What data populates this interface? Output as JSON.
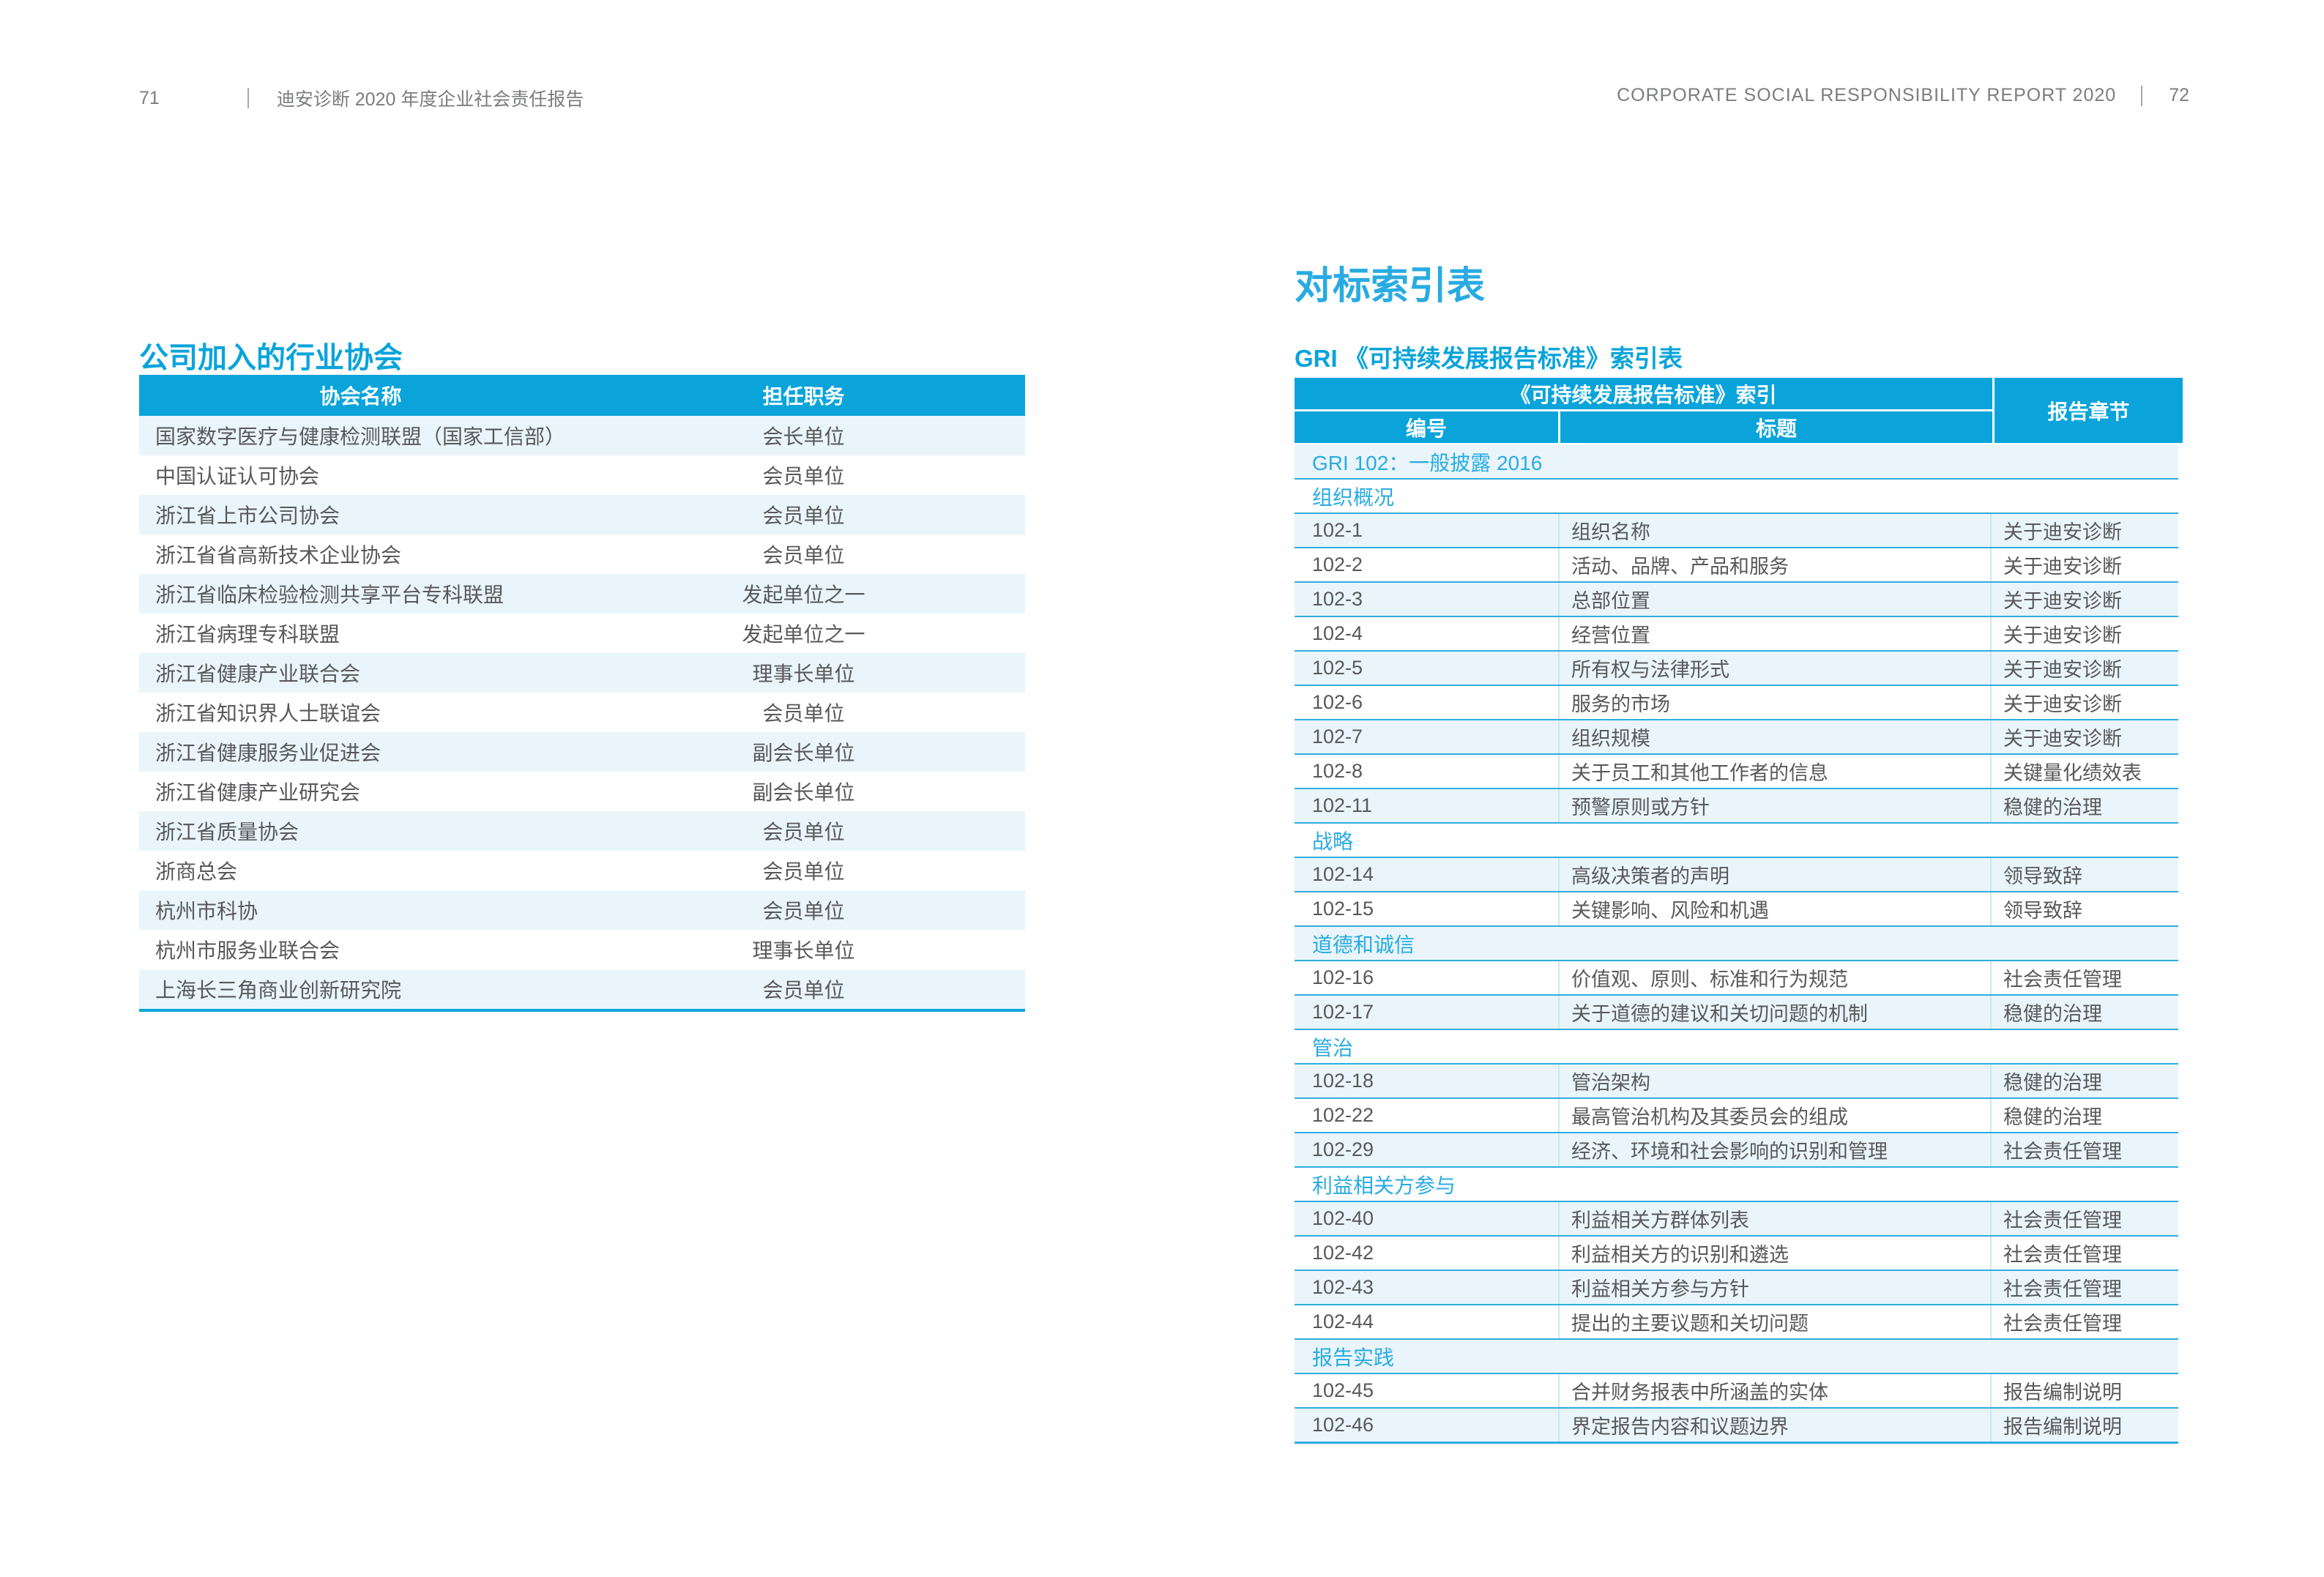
{
  "colors": {
    "accent": "#0aa4da",
    "section_text": "#29abe2",
    "row_alt": "#e9f5fb",
    "row_separator": "#2fadde",
    "body_text": "#58585a",
    "header_text": "#7b7c7f"
  },
  "page_left": {
    "header": {
      "page_number": "71",
      "report_title": "迪安诊断 2020 年度企业社会责任报告"
    },
    "section_title": "公司加入的行业协会",
    "table": {
      "columns": [
        "协会名称",
        "担任职务"
      ],
      "rows": [
        [
          "国家数字医疗与健康检测联盟（国家工信部）",
          "会长单位"
        ],
        [
          "中国认证认可协会",
          "会员单位"
        ],
        [
          "浙江省上市公司协会",
          "会员单位"
        ],
        [
          "浙江省省高新技术企业协会",
          "会员单位"
        ],
        [
          "浙江省临床检验检测共享平台专科联盟",
          "发起单位之一"
        ],
        [
          "浙江省病理专科联盟",
          "发起单位之一"
        ],
        [
          "浙江省健康产业联合会",
          "理事长单位"
        ],
        [
          "浙江省知识界人士联谊会",
          "会员单位"
        ],
        [
          "浙江省健康服务业促进会",
          "副会长单位"
        ],
        [
          "浙江省健康产业研究会",
          "副会长单位"
        ],
        [
          "浙江省质量协会",
          "会员单位"
        ],
        [
          "浙商总会",
          "会员单位"
        ],
        [
          "杭州市科协",
          "会员单位"
        ],
        [
          "杭州市服务业联合会",
          "理事长单位"
        ],
        [
          "上海长三角商业创新研究院",
          "会员单位"
        ]
      ]
    }
  },
  "page_right": {
    "header": {
      "report_title": "CORPORATE SOCIAL RESPONSIBILITY REPORT 2020",
      "page_number": "72"
    },
    "page_title": "对标索引表",
    "section_title": "GRI 《可持续发展报告标准》索引表",
    "table": {
      "header": {
        "group": "《可持续发展报告标准》索引",
        "col_number": "编号",
        "col_title": "标题",
        "col_chapter": "报告章节"
      },
      "rows": [
        {
          "type": "section",
          "label": "GRI 102：一般披露 2016"
        },
        {
          "type": "section",
          "label": "组织概况"
        },
        {
          "type": "data",
          "number": "102-1",
          "title": "组织名称",
          "chapter": "关于迪安诊断"
        },
        {
          "type": "data",
          "number": "102-2",
          "title": "活动、品牌、产品和服务",
          "chapter": "关于迪安诊断"
        },
        {
          "type": "data",
          "number": "102-3",
          "title": "总部位置",
          "chapter": "关于迪安诊断"
        },
        {
          "type": "data",
          "number": "102-4",
          "title": "经营位置",
          "chapter": "关于迪安诊断"
        },
        {
          "type": "data",
          "number": "102-5",
          "title": "所有权与法律形式",
          "chapter": "关于迪安诊断"
        },
        {
          "type": "data",
          "number": "102-6",
          "title": "服务的市场",
          "chapter": "关于迪安诊断"
        },
        {
          "type": "data",
          "number": "102-7",
          "title": "组织规模",
          "chapter": "关于迪安诊断"
        },
        {
          "type": "data",
          "number": "102-8",
          "title": "关于员工和其他工作者的信息",
          "chapter": "关键量化绩效表"
        },
        {
          "type": "data",
          "number": "102-11",
          "title": "预警原则或方针",
          "chapter": "稳健的治理"
        },
        {
          "type": "section",
          "label": "战略"
        },
        {
          "type": "data",
          "number": "102-14",
          "title": "高级决策者的声明",
          "chapter": "领导致辞"
        },
        {
          "type": "data",
          "number": "102-15",
          "title": "关键影响、风险和机遇",
          "chapter": "领导致辞"
        },
        {
          "type": "section",
          "label": "道德和诚信"
        },
        {
          "type": "data",
          "number": "102-16",
          "title": "价值观、原则、标准和行为规范",
          "chapter": "社会责任管理"
        },
        {
          "type": "data",
          "number": "102-17",
          "title": "关于道德的建议和关切问题的机制",
          "chapter": "稳健的治理"
        },
        {
          "type": "section",
          "label": "管治"
        },
        {
          "type": "data",
          "number": "102-18",
          "title": "管治架构",
          "chapter": "稳健的治理"
        },
        {
          "type": "data",
          "number": "102-22",
          "title": "最高管治机构及其委员会的组成",
          "chapter": "稳健的治理"
        },
        {
          "type": "data",
          "number": "102-29",
          "title": "经济、环境和社会影响的识别和管理",
          "chapter": "社会责任管理"
        },
        {
          "type": "section",
          "label": "利益相关方参与"
        },
        {
          "type": "data",
          "number": "102-40",
          "title": "利益相关方群体列表",
          "chapter": "社会责任管理"
        },
        {
          "type": "data",
          "number": "102-42",
          "title": "利益相关方的识别和遴选",
          "chapter": "社会责任管理"
        },
        {
          "type": "data",
          "number": "102-43",
          "title": "利益相关方参与方针",
          "chapter": "社会责任管理"
        },
        {
          "type": "data",
          "number": "102-44",
          "title": "提出的主要议题和关切问题",
          "chapter": "社会责任管理"
        },
        {
          "type": "section",
          "label": "报告实践"
        },
        {
          "type": "data",
          "number": "102-45",
          "title": "合并财务报表中所涵盖的实体",
          "chapter": "报告编制说明"
        },
        {
          "type": "data",
          "number": "102-46",
          "title": "界定报告内容和议题边界",
          "chapter": "报告编制说明"
        }
      ]
    }
  }
}
